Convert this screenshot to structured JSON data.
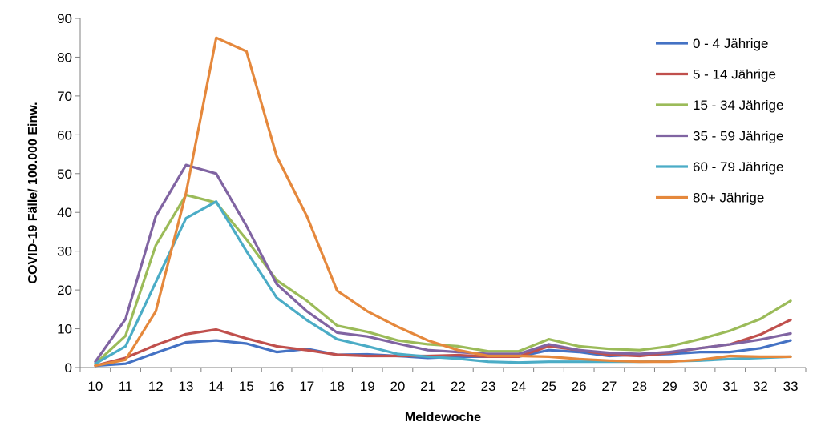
{
  "chart_data": {
    "type": "line",
    "xlabel": "Meldewoche",
    "ylabel": "COVID-19 Fälle/  100.000 Einw.",
    "ylim": [
      0,
      90
    ],
    "y_ticks": [
      0,
      10,
      20,
      30,
      40,
      50,
      60,
      70,
      80,
      90
    ],
    "categories": [
      "10",
      "11",
      "12",
      "13",
      "14",
      "15",
      "16",
      "17",
      "18",
      "19",
      "20",
      "21",
      "22",
      "23",
      "24",
      "25",
      "26",
      "27",
      "28",
      "29",
      "30",
      "31",
      "32",
      "33"
    ],
    "grid": false,
    "legend_position": "top-right",
    "series": [
      {
        "name": "0 - 4 Jährige",
        "color": "#4472c4",
        "values": [
          0.5,
          1,
          3.8,
          6.5,
          7,
          6.2,
          4,
          4.8,
          3.3,
          3.4,
          3,
          2.5,
          2.8,
          2.8,
          2.8,
          4.5,
          4,
          3,
          3.3,
          3.5,
          4,
          4,
          5,
          7
        ]
      },
      {
        "name": "5 - 14 Jährige",
        "color": "#c0504d",
        "values": [
          0.5,
          2.5,
          5.8,
          8.6,
          9.8,
          7.5,
          5.5,
          4.5,
          3.3,
          3,
          3,
          3,
          3.2,
          2.8,
          2.8,
          5.5,
          4.5,
          3.3,
          3,
          3.8,
          5,
          6,
          8.5,
          12.3
        ]
      },
      {
        "name": "15 - 34 Jährige",
        "color": "#9bbb59",
        "values": [
          1,
          8.2,
          31.5,
          44.5,
          42.5,
          33,
          22.5,
          17.2,
          10.8,
          9.2,
          7,
          6,
          5.5,
          4.2,
          4.2,
          7.3,
          5.5,
          4.8,
          4.5,
          5.5,
          7.3,
          9.5,
          12.5,
          17.2
        ]
      },
      {
        "name": "35 - 59 Jährige",
        "color": "#8064a2",
        "values": [
          1.5,
          12.5,
          39,
          52.2,
          50,
          36.5,
          21.5,
          14.5,
          9,
          8,
          6.2,
          4.5,
          4,
          3.5,
          3.5,
          6,
          4.5,
          3.8,
          3.5,
          4,
          5,
          6,
          7.2,
          8.8
        ]
      },
      {
        "name": "60 - 79 Jährige",
        "color": "#4bacc6",
        "values": [
          1,
          5.5,
          22,
          38.5,
          42.8,
          30,
          18,
          12.2,
          7.3,
          5.5,
          3.5,
          2.8,
          2.3,
          1.5,
          1.3,
          1.5,
          1.5,
          1.5,
          1.5,
          1.6,
          1.8,
          2.2,
          2.5,
          2.8
        ]
      },
      {
        "name": "80+ Jährige",
        "color": "#e5883c",
        "values": [
          0.5,
          2,
          14.5,
          45,
          85,
          81.5,
          54.5,
          39,
          19.8,
          14.5,
          10.5,
          7,
          4.5,
          3,
          3,
          2.8,
          2.2,
          1.8,
          1.5,
          1.5,
          2,
          3,
          2.8,
          2.8
        ]
      }
    ]
  }
}
